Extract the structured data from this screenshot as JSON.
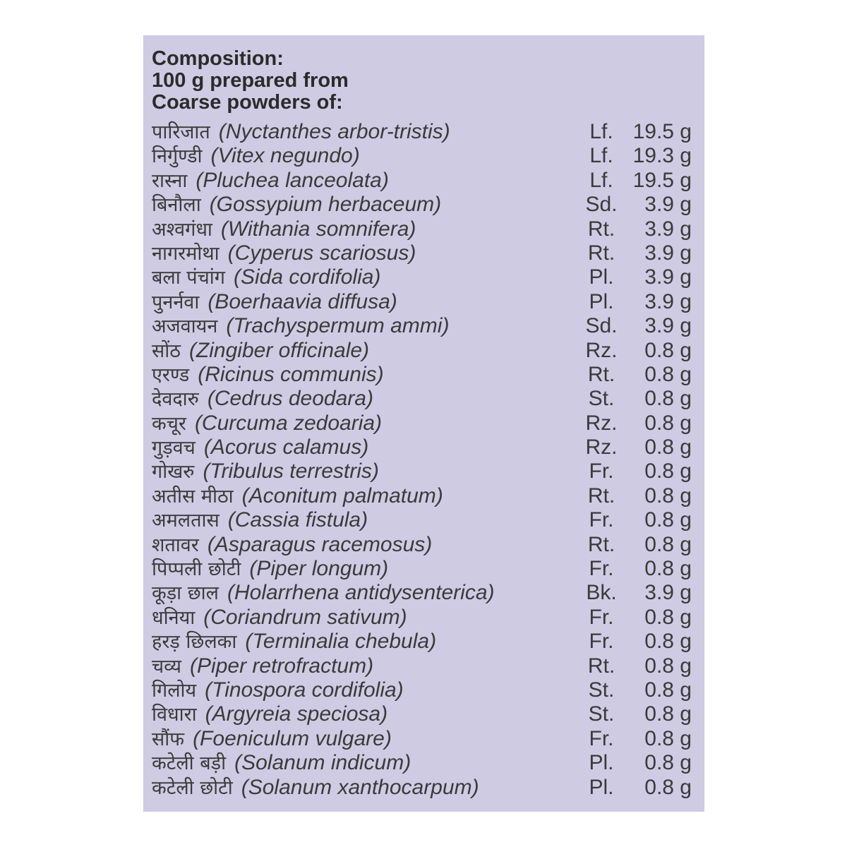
{
  "header": {
    "line1": "Composition:",
    "line2": "100 g prepared from",
    "line3": "Coarse powders of:"
  },
  "ingredients": [
    {
      "hindi": "पारिजात",
      "latin": "(Nyctanthes arbor-tristis)",
      "part": "Lf.",
      "qty": "19.5 g"
    },
    {
      "hindi": "निर्गुण्डी",
      "latin": "(Vitex negundo)",
      "part": "Lf.",
      "qty": "19.3 g"
    },
    {
      "hindi": "रास्ना",
      "latin": "(Pluchea lanceolata)",
      "part": "Lf.",
      "qty": "19.5 g"
    },
    {
      "hindi": "बिनौला",
      "latin": "(Gossypium herbaceum)",
      "part": "Sd.",
      "qty": "3.9 g"
    },
    {
      "hindi": "अश्वगंधा",
      "latin": "(Withania somnifera)",
      "part": "Rt.",
      "qty": "3.9 g"
    },
    {
      "hindi": "नागरमोथा",
      "latin": "(Cyperus scariosus)",
      "part": "Rt.",
      "qty": "3.9 g"
    },
    {
      "hindi": "बला पंचांग",
      "latin": "(Sida cordifolia)",
      "part": "Pl.",
      "qty": "3.9 g"
    },
    {
      "hindi": "पुनर्नवा",
      "latin": "(Boerhaavia diffusa)",
      "part": "Pl.",
      "qty": "3.9 g"
    },
    {
      "hindi": "अजवायन",
      "latin": "(Trachyspermum ammi)",
      "part": "Sd.",
      "qty": "3.9 g"
    },
    {
      "hindi": "सोंठ",
      "latin": "(Zingiber officinale)",
      "part": "Rz.",
      "qty": "0.8 g"
    },
    {
      "hindi": "एरण्ड",
      "latin": "(Ricinus communis)",
      "part": "Rt.",
      "qty": "0.8 g"
    },
    {
      "hindi": "देवदारु",
      "latin": "(Cedrus deodara)",
      "part": "St.",
      "qty": "0.8 g"
    },
    {
      "hindi": "कचूर",
      "latin": "(Curcuma zedoaria)",
      "part": "Rz.",
      "qty": "0.8 g"
    },
    {
      "hindi": "गुड़वच",
      "latin": "(Acorus calamus)",
      "part": "Rz.",
      "qty": "0.8 g"
    },
    {
      "hindi": "गोखरु",
      "latin": "(Tribulus terrestris)",
      "part": "Fr.",
      "qty": "0.8 g"
    },
    {
      "hindi": "अतीस मीठा",
      "latin": "(Aconitum palmatum)",
      "part": "Rt.",
      "qty": "0.8 g"
    },
    {
      "hindi": "अमलतास",
      "latin": "(Cassia fistula)",
      "part": "Fr.",
      "qty": "0.8 g"
    },
    {
      "hindi": "शतावर",
      "latin": "(Asparagus racemosus)",
      "part": "Rt.",
      "qty": "0.8 g"
    },
    {
      "hindi": "पिप्पली छोटी",
      "latin": "(Piper longum)",
      "part": "Fr.",
      "qty": "0.8 g"
    },
    {
      "hindi": "कूड़ा छाल",
      "latin": "(Holarrhena antidysenterica)",
      "part": "Bk.",
      "qty": "3.9 g"
    },
    {
      "hindi": "धनिया",
      "latin": "(Coriandrum sativum)",
      "part": "Fr.",
      "qty": "0.8 g"
    },
    {
      "hindi": "हरड़ छिलका",
      "latin": "(Terminalia chebula)",
      "part": "Fr.",
      "qty": "0.8 g"
    },
    {
      "hindi": "चव्य",
      "latin": "(Piper retrofractum)",
      "part": "Rt.",
      "qty": "0.8 g"
    },
    {
      "hindi": "गिलोय",
      "latin": "(Tinospora cordifolia)",
      "part": "St.",
      "qty": "0.8 g"
    },
    {
      "hindi": "विधारा",
      "latin": "(Argyreia speciosa)",
      "part": "St.",
      "qty": "0.8 g"
    },
    {
      "hindi": "सौंफ",
      "latin": "(Foeniculum vulgare)",
      "part": "Fr.",
      "qty": "0.8 g"
    },
    {
      "hindi": "कटेली बड़ी",
      "latin": "(Solanum indicum)",
      "part": "Pl.",
      "qty": "0.8 g"
    },
    {
      "hindi": "कटेली छोटी",
      "latin": "(Solanum xanthocarpum)",
      "part": "Pl.",
      "qty": "0.8 g"
    }
  ],
  "colors": {
    "panel_background": "#cfcbe3",
    "text": "#3a3a3a"
  }
}
